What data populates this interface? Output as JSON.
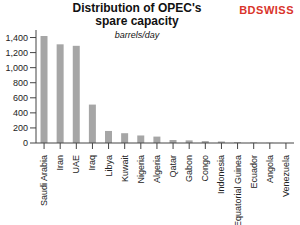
{
  "chart_data": {
    "type": "bar",
    "title": "Distribution of OPEC's spare capacity",
    "subtitle": "barrels/day",
    "annotations": [
      "BDSWISS"
    ],
    "categories": [
      "Saudi Arabia",
      "Iran",
      "UAE",
      "Iraq",
      "Libya",
      "Kuwait",
      "Nigeria",
      "Algeria",
      "Qatar",
      "Gabon",
      "Congo",
      "Indonesia",
      "Equatorial Guinea",
      "Ecuador",
      "Angola",
      "Venezuela"
    ],
    "values": [
      1420,
      1310,
      1290,
      510,
      160,
      130,
      100,
      85,
      40,
      35,
      25,
      20,
      10,
      5,
      3,
      0
    ],
    "color": "#a6a6a6",
    "ylim": [
      0,
      1500
    ],
    "yticks": [
      0,
      200,
      400,
      600,
      800,
      {
        "value": 1000,
        "label": "1,000"
      },
      {
        "value": 1200,
        "label": "1,200"
      },
      {
        "value": 1400,
        "label": "1,400"
      }
    ],
    "grid": false
  }
}
